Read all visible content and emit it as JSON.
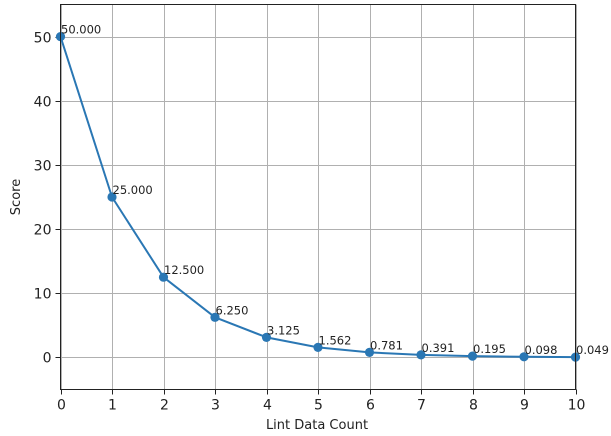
{
  "chart_data": {
    "type": "line",
    "title": "",
    "xlabel": "Lint Data Count",
    "ylabel": "Score",
    "xlim": [
      0,
      10
    ],
    "ylim": [
      -5,
      55
    ],
    "xticks": [
      0,
      1,
      2,
      3,
      4,
      5,
      6,
      7,
      8,
      9,
      10
    ],
    "yticks": [
      0,
      10,
      20,
      30,
      40,
      50
    ],
    "grid": true,
    "series": [
      {
        "color": "#2a77b4",
        "marker": "circle",
        "x": [
          0,
          1,
          2,
          3,
          4,
          5,
          6,
          7,
          8,
          9,
          10
        ],
        "y": [
          50.0,
          25.0,
          12.5,
          6.25,
          3.125,
          1.5625,
          0.78125,
          0.390625,
          0.1953125,
          0.09765625,
          0.048828125
        ],
        "point_labels": [
          "50.000",
          "25.000",
          "12.500",
          "6.250",
          "3.125",
          "1.562",
          "0.781",
          "0.391",
          "0.195",
          "0.098",
          "0.049"
        ]
      }
    ]
  }
}
